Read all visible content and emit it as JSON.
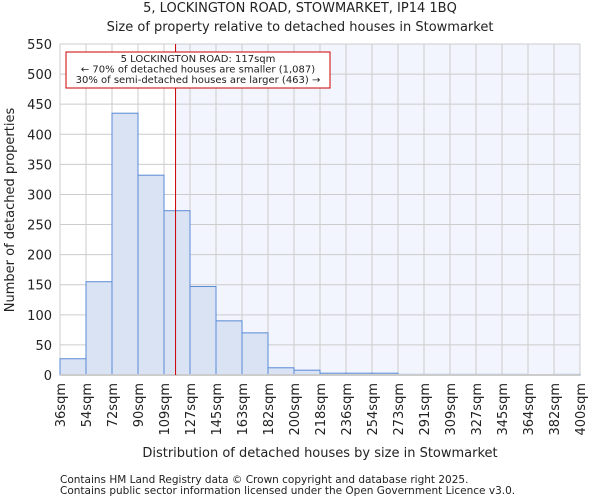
{
  "chart_data": {
    "type": "bar",
    "title": "5, LOCKINGTON ROAD, STOWMARKET, IP14 1BQ",
    "subtitle": "Size of property relative to detached houses in Stowmarket",
    "xlabel": "Distribution of detached houses by size in Stowmarket",
    "ylabel": "Number of detached properties",
    "ylim": [
      0,
      550
    ],
    "yticks": [
      0,
      50,
      100,
      150,
      200,
      250,
      300,
      350,
      400,
      450,
      500,
      550
    ],
    "bin_edges": [
      36,
      54,
      72,
      90,
      109,
      127,
      145,
      163,
      182,
      200,
      218,
      236,
      254,
      273,
      291,
      309,
      327,
      345,
      364,
      382,
      400
    ],
    "xtick_labels": [
      "36sqm",
      "54sqm",
      "72sqm",
      "90sqm",
      "109sqm",
      "127sqm",
      "145sqm",
      "163sqm",
      "182sqm",
      "200sqm",
      "218sqm",
      "236sqm",
      "254sqm",
      "273sqm",
      "291sqm",
      "309sqm",
      "327sqm",
      "345sqm",
      "364sqm",
      "382sqm",
      "400sqm"
    ],
    "values": [
      27,
      155,
      435,
      332,
      273,
      147,
      90,
      70,
      12,
      8,
      3,
      3,
      3,
      1,
      1,
      1,
      1,
      1,
      0,
      1
    ],
    "marker_value": 117,
    "annotation": [
      "5 LOCKINGTON ROAD: 117sqm",
      "← 70% of detached houses are smaller (1,087)",
      "30% of semi-detached houses are larger (463) →"
    ],
    "grid": true,
    "colors": {
      "bar": "#dae3f3",
      "edge": "#5a8ad6",
      "marker": "#cc0000",
      "right_bg": "#f2f5fd"
    }
  },
  "footer": [
    "Contains HM Land Registry data © Crown copyright and database right 2025.",
    "Contains public sector information licensed under the Open Government Licence v3.0."
  ]
}
